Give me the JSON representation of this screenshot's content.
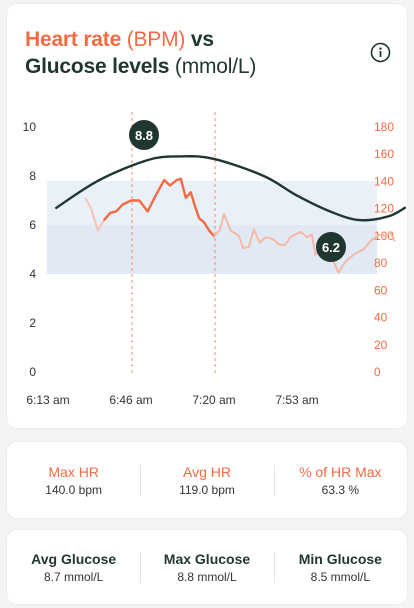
{
  "title": {
    "line1_highlight": "Heart rate",
    "line1_light": " (BPM)",
    "line1_rest": " vs",
    "line2_main": "Glucose levels",
    "line2_light": " (mmol/L)"
  },
  "icons": {
    "info": "info-icon"
  },
  "colors": {
    "accent": "#f26b43",
    "dark": "#1f3631",
    "band_high": "#e9f0f8",
    "band_low": "#e1e9f5"
  },
  "chart_data": {
    "type": "line",
    "x_tick_labels": [
      "6:13 am",
      "6:46 am",
      "7:20 am",
      "7:53 am"
    ],
    "y_left": {
      "ticks": [
        "0",
        "2",
        "4",
        "6",
        "8",
        "10"
      ],
      "range": [
        0,
        10
      ]
    },
    "y_right": {
      "ticks": [
        "0",
        "20",
        "40",
        "60",
        "80",
        "100",
        "120",
        "140",
        "160",
        "180"
      ],
      "range": [
        0,
        180
      ]
    },
    "target_range_glucose": [
      4,
      7.8
    ],
    "markers": [
      "6:46 am",
      "7:20 am"
    ],
    "glucose_peak_label": "8.8",
    "glucose_end_label": "6.2",
    "series": [
      {
        "axis": "left",
        "points": [
          [
            0.1,
            6.7
          ],
          [
            0.6,
            7.8
          ],
          [
            1.2,
            8.65
          ],
          [
            1.6,
            8.8
          ],
          [
            2.0,
            8.7
          ],
          [
            2.6,
            8.0
          ],
          [
            3.0,
            7.2
          ],
          [
            3.4,
            6.55
          ],
          [
            3.75,
            6.2
          ],
          [
            4.1,
            6.35
          ],
          [
            4.3,
            6.7
          ]
        ]
      },
      {
        "axis": "right",
        "points": [
          [
            0.45,
            128
          ],
          [
            0.52,
            120
          ],
          [
            0.6,
            104
          ],
          [
            0.68,
            112
          ],
          [
            0.75,
            117
          ],
          [
            0.82,
            118
          ],
          [
            0.9,
            123
          ],
          [
            1.0,
            126
          ],
          [
            1.1,
            126
          ],
          [
            1.2,
            118
          ],
          [
            1.3,
            130
          ],
          [
            1.4,
            141
          ],
          [
            1.47,
            137
          ],
          [
            1.55,
            141
          ],
          [
            1.6,
            142
          ],
          [
            1.66,
            128
          ],
          [
            1.72,
            132
          ],
          [
            1.77,
            122
          ],
          [
            1.82,
            113
          ],
          [
            1.88,
            110
          ],
          [
            1.94,
            104
          ],
          [
            2.0,
            100
          ],
          [
            2.07,
            104
          ],
          [
            2.12,
            116
          ],
          [
            2.2,
            104
          ],
          [
            2.25,
            102
          ],
          [
            2.3,
            100
          ],
          [
            2.35,
            91
          ],
          [
            2.42,
            92
          ],
          [
            2.48,
            105
          ],
          [
            2.55,
            95
          ],
          [
            2.62,
            99
          ],
          [
            2.7,
            98
          ],
          [
            2.78,
            94
          ],
          [
            2.85,
            93
          ],
          [
            2.92,
            99
          ],
          [
            2.98,
            101
          ],
          [
            3.05,
            103
          ],
          [
            3.12,
            99
          ],
          [
            3.18,
            101
          ],
          [
            3.22,
            86
          ],
          [
            3.3,
            94
          ],
          [
            3.38,
            91
          ],
          [
            3.45,
            80
          ],
          [
            3.5,
            73
          ],
          [
            3.55,
            78
          ],
          [
            3.6,
            82
          ],
          [
            3.7,
            87
          ],
          [
            3.8,
            90
          ],
          [
            3.9,
            97
          ],
          [
            4.0,
            101
          ],
          [
            4.07,
            100
          ],
          [
            4.12,
            103
          ],
          [
            4.18,
            96
          ]
        ]
      }
    ]
  },
  "heart_rate_stats": [
    {
      "label": "Max HR",
      "value": "140.0 bpm"
    },
    {
      "label": "Avg HR",
      "value": "119.0 bpm"
    },
    {
      "label": "% of HR Max",
      "value": "63.3 %"
    }
  ],
  "glucose_stats": [
    {
      "label": "Avg Glucose",
      "value": "8.7 mmol/L"
    },
    {
      "label": "Max Glucose",
      "value": "8.8 mmol/L"
    },
    {
      "label": "Min Glucose",
      "value": "8.5 mmol/L"
    }
  ]
}
